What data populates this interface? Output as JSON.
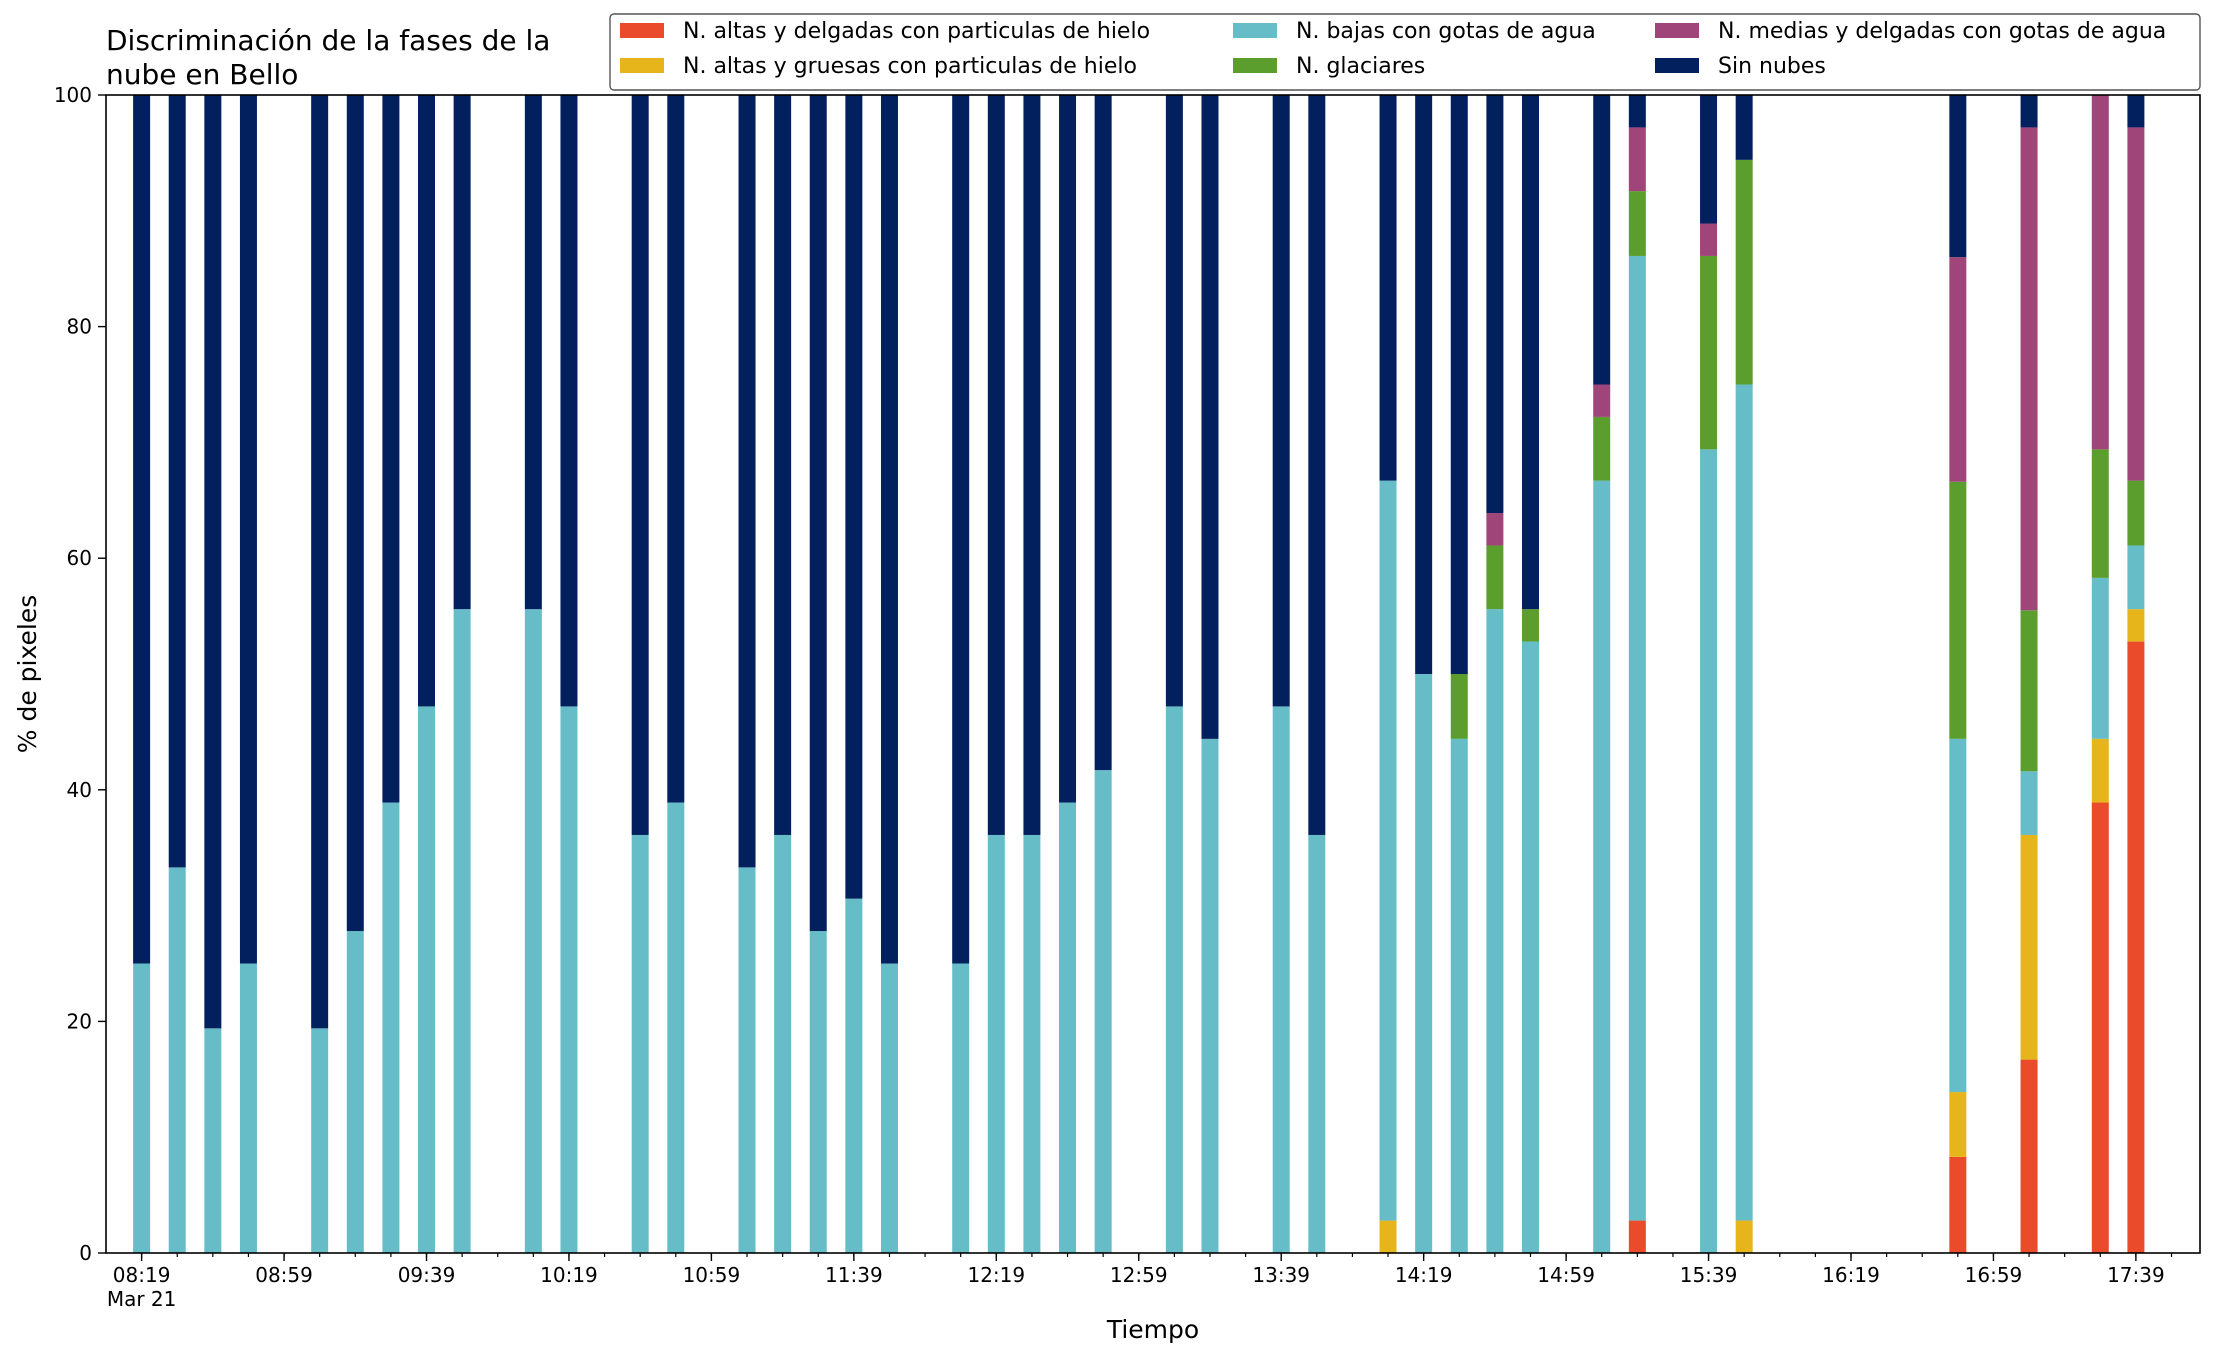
{
  "chart_data": {
    "type": "bar",
    "stacked": true,
    "title": "Discriminación de la fases de la nube en Bello",
    "title_lines": [
      "Discriminación de la fases de la",
      "nube en Bello"
    ],
    "xlabel": "Tiempo",
    "ylabel": "% de pixeles",
    "ylim": [
      0,
      100
    ],
    "yticks": [
      0,
      20,
      40,
      60,
      80,
      100
    ],
    "xlim_minutes_after_08_19": [
      -10,
      578
    ],
    "grid": false,
    "legend_position": "top-right",
    "legend_columns": 3,
    "x_tick_labels": [
      {
        "time": "08:19",
        "label": "08:19",
        "sublabel": "Mar 21"
      },
      {
        "time": "08:59",
        "label": "08:59"
      },
      {
        "time": "09:39",
        "label": "09:39"
      },
      {
        "time": "10:19",
        "label": "10:19"
      },
      {
        "time": "10:59",
        "label": "10:59"
      },
      {
        "time": "11:39",
        "label": "11:39"
      },
      {
        "time": "12:19",
        "label": "12:19"
      },
      {
        "time": "12:59",
        "label": "12:59"
      },
      {
        "time": "13:39",
        "label": "13:39"
      },
      {
        "time": "14:19",
        "label": "14:19"
      },
      {
        "time": "14:59",
        "label": "14:59"
      },
      {
        "time": "15:39",
        "label": "15:39"
      },
      {
        "time": "16:19",
        "label": "16:19"
      },
      {
        "time": "16:59",
        "label": "16:59"
      },
      {
        "time": "17:39",
        "label": "17:39"
      }
    ],
    "minor_tick_interval_minutes": 10,
    "series": [
      {
        "key": "altas_delgadas",
        "name": "N. altas y delgadas con particulas de hielo",
        "color": "#e94b2b"
      },
      {
        "key": "altas_gruesas",
        "name": "N. altas y gruesas con particulas de hielo",
        "color": "#e6b51c"
      },
      {
        "key": "bajas",
        "name": "N. bajas con gotas de agua",
        "color": "#66bdc8"
      },
      {
        "key": "glaciares",
        "name": "N. glaciares",
        "color": "#5b9e2e"
      },
      {
        "key": "medias",
        "name": "N. medias y delgadas con gotas de agua",
        "color": "#a0457a"
      },
      {
        "key": "sin_nubes",
        "name": "Sin nubes",
        "color": "#03205e"
      }
    ],
    "legend_order": [
      "altas_delgadas",
      "altas_gruesas",
      "bajas",
      "glaciares",
      "medias",
      "sin_nubes"
    ],
    "bars": [
      {
        "time": "08:19",
        "altas_delgadas": 0,
        "altas_gruesas": 0,
        "bajas": 25.0,
        "glaciares": 0,
        "medias": 0,
        "sin_nubes": 75.0
      },
      {
        "time": "08:29",
        "altas_delgadas": 0,
        "altas_gruesas": 0,
        "bajas": 33.3,
        "glaciares": 0,
        "medias": 0,
        "sin_nubes": 66.7
      },
      {
        "time": "08:39",
        "altas_delgadas": 0,
        "altas_gruesas": 0,
        "bajas": 19.4,
        "glaciares": 0,
        "medias": 0,
        "sin_nubes": 80.6
      },
      {
        "time": "08:49",
        "altas_delgadas": 0,
        "altas_gruesas": 0,
        "bajas": 25.0,
        "glaciares": 0,
        "medias": 0,
        "sin_nubes": 75.0
      },
      {
        "time": "09:09",
        "altas_delgadas": 0,
        "altas_gruesas": 0,
        "bajas": 19.4,
        "glaciares": 0,
        "medias": 0,
        "sin_nubes": 80.6
      },
      {
        "time": "09:19",
        "altas_delgadas": 0,
        "altas_gruesas": 0,
        "bajas": 27.8,
        "glaciares": 0,
        "medias": 0,
        "sin_nubes": 72.2
      },
      {
        "time": "09:29",
        "altas_delgadas": 0,
        "altas_gruesas": 0,
        "bajas": 38.9,
        "glaciares": 0,
        "medias": 0,
        "sin_nubes": 61.1
      },
      {
        "time": "09:39",
        "altas_delgadas": 0,
        "altas_gruesas": 0,
        "bajas": 47.2,
        "glaciares": 0,
        "medias": 0,
        "sin_nubes": 52.8
      },
      {
        "time": "09:49",
        "altas_delgadas": 0,
        "altas_gruesas": 0,
        "bajas": 55.6,
        "glaciares": 0,
        "medias": 0,
        "sin_nubes": 44.4
      },
      {
        "time": "10:09",
        "altas_delgadas": 0,
        "altas_gruesas": 0,
        "bajas": 55.6,
        "glaciares": 0,
        "medias": 0,
        "sin_nubes": 44.4
      },
      {
        "time": "10:19",
        "altas_delgadas": 0,
        "altas_gruesas": 0,
        "bajas": 47.2,
        "glaciares": 0,
        "medias": 0,
        "sin_nubes": 52.8
      },
      {
        "time": "10:39",
        "altas_delgadas": 0,
        "altas_gruesas": 0,
        "bajas": 36.1,
        "glaciares": 0,
        "medias": 0,
        "sin_nubes": 63.9
      },
      {
        "time": "10:49",
        "altas_delgadas": 0,
        "altas_gruesas": 0,
        "bajas": 38.9,
        "glaciares": 0,
        "medias": 0,
        "sin_nubes": 61.1
      },
      {
        "time": "11:09",
        "altas_delgadas": 0,
        "altas_gruesas": 0,
        "bajas": 33.3,
        "glaciares": 0,
        "medias": 0,
        "sin_nubes": 66.7
      },
      {
        "time": "11:19",
        "altas_delgadas": 0,
        "altas_gruesas": 0,
        "bajas": 36.1,
        "glaciares": 0,
        "medias": 0,
        "sin_nubes": 63.9
      },
      {
        "time": "11:29",
        "altas_delgadas": 0,
        "altas_gruesas": 0,
        "bajas": 27.8,
        "glaciares": 0,
        "medias": 0,
        "sin_nubes": 72.2
      },
      {
        "time": "11:39",
        "altas_delgadas": 0,
        "altas_gruesas": 0,
        "bajas": 30.6,
        "glaciares": 0,
        "medias": 0,
        "sin_nubes": 69.4
      },
      {
        "time": "11:49",
        "altas_delgadas": 0,
        "altas_gruesas": 0,
        "bajas": 25.0,
        "glaciares": 0,
        "medias": 0,
        "sin_nubes": 75.0
      },
      {
        "time": "12:09",
        "altas_delgadas": 0,
        "altas_gruesas": 0,
        "bajas": 25.0,
        "glaciares": 0,
        "medias": 0,
        "sin_nubes": 75.0
      },
      {
        "time": "12:19",
        "altas_delgadas": 0,
        "altas_gruesas": 0,
        "bajas": 36.1,
        "glaciares": 0,
        "medias": 0,
        "sin_nubes": 63.9
      },
      {
        "time": "12:29",
        "altas_delgadas": 0,
        "altas_gruesas": 0,
        "bajas": 36.1,
        "glaciares": 0,
        "medias": 0,
        "sin_nubes": 63.9
      },
      {
        "time": "12:39",
        "altas_delgadas": 0,
        "altas_gruesas": 0,
        "bajas": 38.9,
        "glaciares": 0,
        "medias": 0,
        "sin_nubes": 61.1
      },
      {
        "time": "12:49",
        "altas_delgadas": 0,
        "altas_gruesas": 0,
        "bajas": 41.7,
        "glaciares": 0,
        "medias": 0,
        "sin_nubes": 58.3
      },
      {
        "time": "13:09",
        "altas_delgadas": 0,
        "altas_gruesas": 0,
        "bajas": 47.2,
        "glaciares": 0,
        "medias": 0,
        "sin_nubes": 52.8
      },
      {
        "time": "13:19",
        "altas_delgadas": 0,
        "altas_gruesas": 0,
        "bajas": 44.4,
        "glaciares": 0,
        "medias": 0,
        "sin_nubes": 55.6
      },
      {
        "time": "13:39",
        "altas_delgadas": 0,
        "altas_gruesas": 0,
        "bajas": 47.2,
        "glaciares": 0,
        "medias": 0,
        "sin_nubes": 52.8
      },
      {
        "time": "13:49",
        "altas_delgadas": 0,
        "altas_gruesas": 0,
        "bajas": 36.1,
        "glaciares": 0,
        "medias": 0,
        "sin_nubes": 63.9
      },
      {
        "time": "14:09",
        "altas_delgadas": 0,
        "altas_gruesas": 2.8,
        "bajas": 63.9,
        "glaciares": 0,
        "medias": 0,
        "sin_nubes": 33.3
      },
      {
        "time": "14:19",
        "altas_delgadas": 0,
        "altas_gruesas": 0,
        "bajas": 50.0,
        "glaciares": 0,
        "medias": 0,
        "sin_nubes": 50.0
      },
      {
        "time": "14:29",
        "altas_delgadas": 0,
        "altas_gruesas": 0,
        "bajas": 44.4,
        "glaciares": 5.6,
        "medias": 0,
        "sin_nubes": 50.0
      },
      {
        "time": "14:39",
        "altas_delgadas": 0,
        "altas_gruesas": 0,
        "bajas": 55.6,
        "glaciares": 5.5,
        "medias": 2.8,
        "sin_nubes": 36.1
      },
      {
        "time": "14:49",
        "altas_delgadas": 0,
        "altas_gruesas": 0,
        "bajas": 52.8,
        "glaciares": 2.8,
        "medias": 0,
        "sin_nubes": 44.4
      },
      {
        "time": "15:09",
        "altas_delgadas": 0,
        "altas_gruesas": 0,
        "bajas": 66.7,
        "glaciares": 5.5,
        "medias": 2.8,
        "sin_nubes": 25.0
      },
      {
        "time": "15:19",
        "altas_delgadas": 2.8,
        "altas_gruesas": 0,
        "bajas": 83.3,
        "glaciares": 5.6,
        "medias": 5.5,
        "sin_nubes": 2.8
      },
      {
        "time": "15:39",
        "altas_delgadas": 0,
        "altas_gruesas": 0,
        "bajas": 69.4,
        "glaciares": 16.7,
        "medias": 2.8,
        "sin_nubes": 11.1
      },
      {
        "time": "15:49",
        "altas_delgadas": 0,
        "altas_gruesas": 2.8,
        "bajas": 72.2,
        "glaciares": 19.4,
        "medias": 0,
        "sin_nubes": 5.6
      },
      {
        "time": "16:49",
        "altas_delgadas": 8.3,
        "altas_gruesas": 5.6,
        "bajas": 30.5,
        "glaciares": 22.2,
        "medias": 19.4,
        "sin_nubes": 14.0
      },
      {
        "time": "17:09",
        "altas_delgadas": 16.7,
        "altas_gruesas": 19.4,
        "bajas": 5.5,
        "glaciares": 13.9,
        "medias": 41.7,
        "sin_nubes": 2.8
      },
      {
        "time": "17:29",
        "altas_delgadas": 38.9,
        "altas_gruesas": 5.5,
        "bajas": 13.9,
        "glaciares": 11.1,
        "medias": 30.6,
        "sin_nubes": 0
      },
      {
        "time": "17:39",
        "altas_delgadas": 52.8,
        "altas_gruesas": 2.8,
        "bajas": 5.5,
        "glaciares": 5.6,
        "medias": 30.5,
        "sin_nubes": 2.8
      }
    ]
  }
}
